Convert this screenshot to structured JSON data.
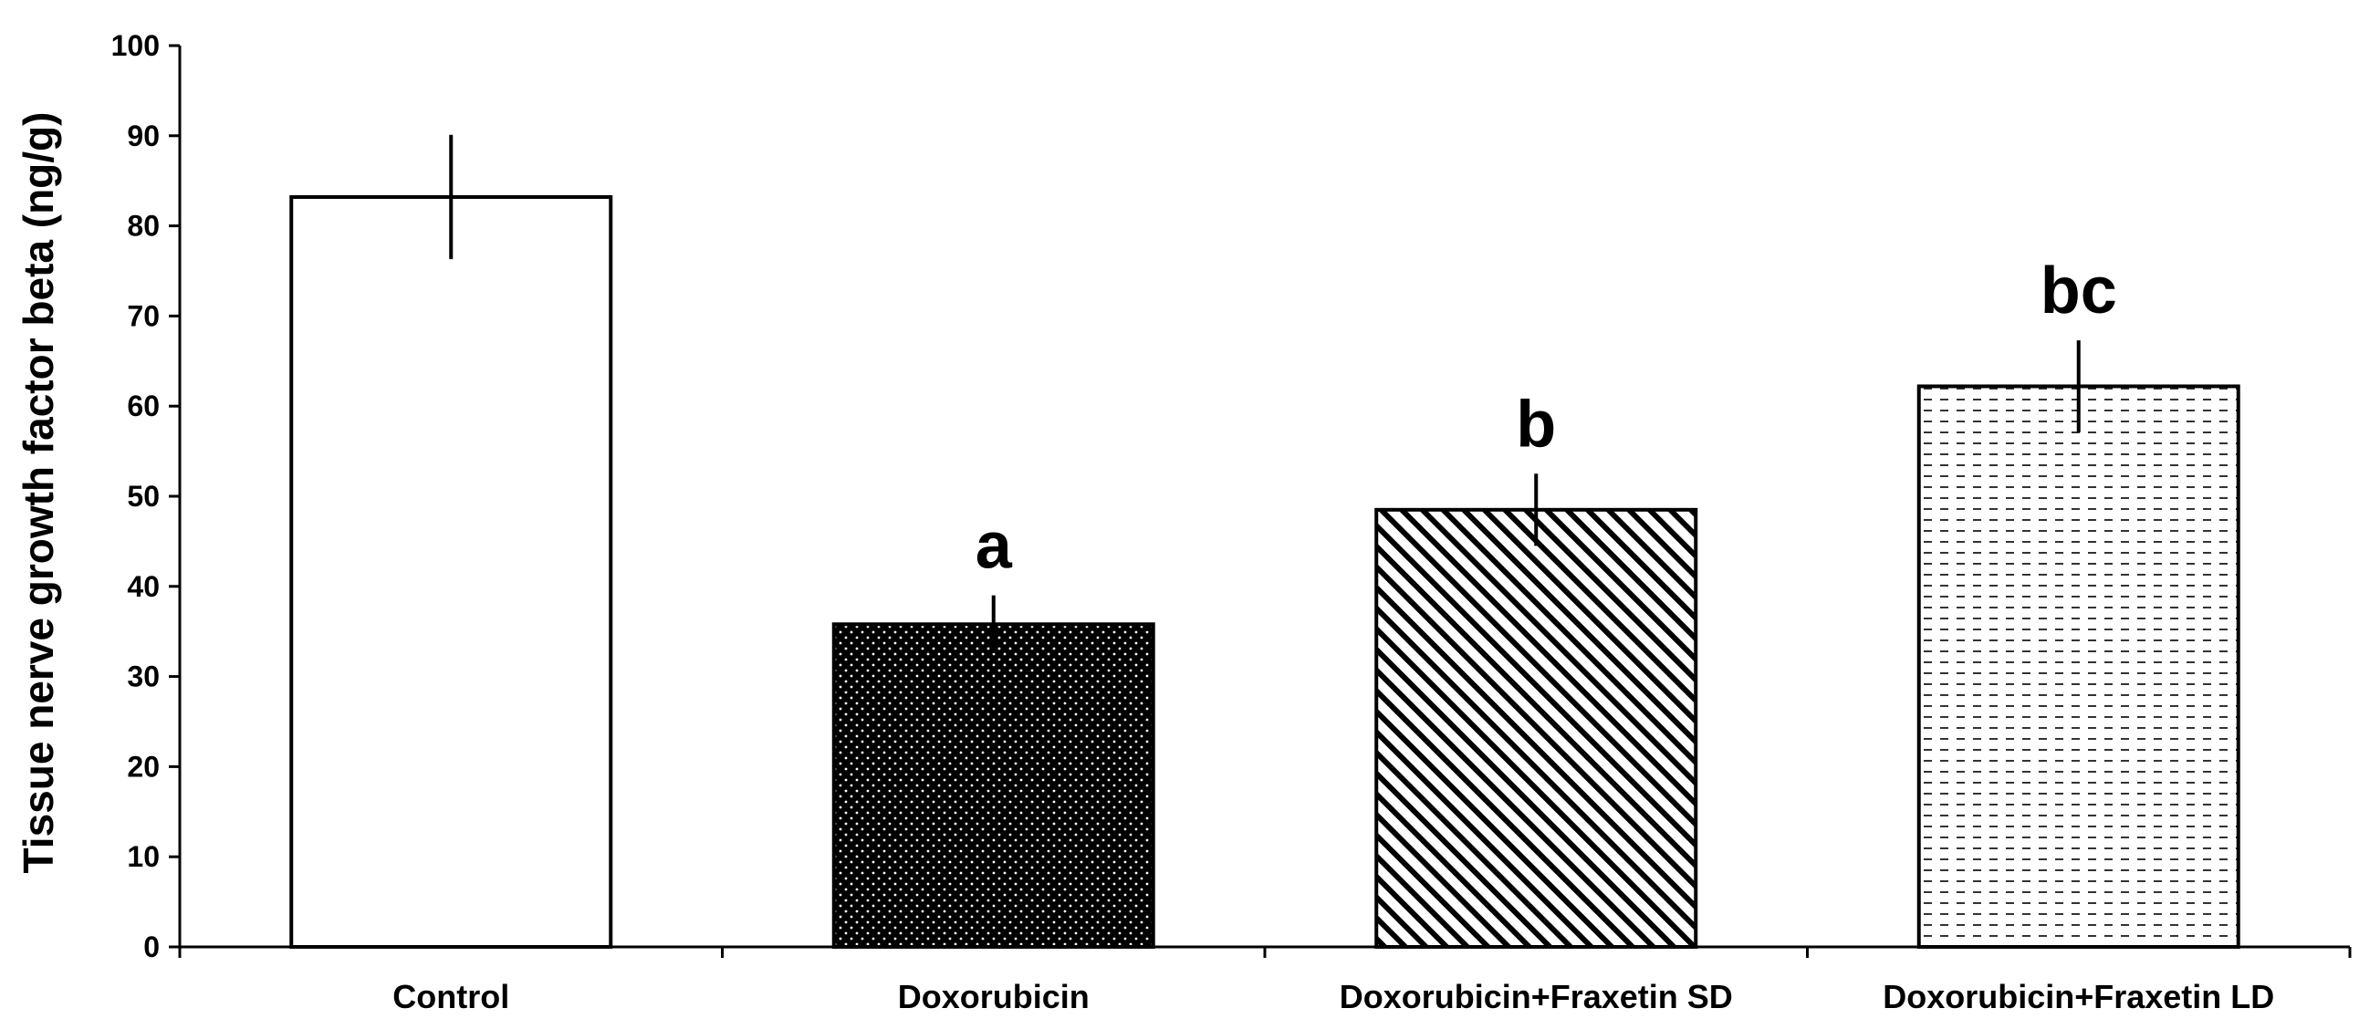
{
  "chart_data": {
    "type": "bar",
    "title": "",
    "xlabel": "",
    "ylabel": "Tissue nerve growth factor beta (ng/g)",
    "ylim": [
      0,
      100
    ],
    "yticks": [
      "0",
      "10",
      "20",
      "30",
      "40",
      "50",
      "60",
      "70",
      "80",
      "90",
      "100"
    ],
    "grid": false,
    "legend": "none",
    "categories": [
      "Control",
      "Doxorubicin",
      "Doxorubicin+Fraxetin SD",
      "Doxorubicin+Fraxetin LD"
    ],
    "values": [
      83.2,
      35.8,
      48.5,
      62.2
    ],
    "errors": [
      6.9,
      3.2,
      4.0,
      5.1
    ],
    "annotations": [
      "",
      "a",
      "b",
      "bc"
    ],
    "fills": [
      "white",
      "black-dotted",
      "diagonal-hatch",
      "dashed-lines"
    ],
    "colors": {
      "axis": "#000000",
      "bar_edge": "#000000"
    }
  }
}
